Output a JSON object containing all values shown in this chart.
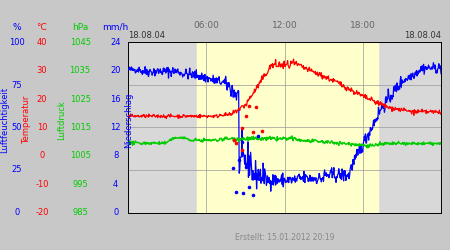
{
  "title_left": "18.08.04",
  "title_right": "18.08.04",
  "time_labels": [
    "06:00",
    "12:00",
    "18:00"
  ],
  "created_text": "Erstellt: 15.01.2012 20:19",
  "blue_ticks": [
    0,
    25,
    50,
    75,
    100
  ],
  "red_ticks": [
    -20,
    -10,
    0,
    10,
    20,
    30,
    40
  ],
  "green_ticks": [
    985,
    995,
    1005,
    1015,
    1025,
    1035,
    1045
  ],
  "purple_ticks": [
    0,
    4,
    8,
    12,
    16,
    20,
    24
  ],
  "label_blue": "%",
  "label_red": "°C",
  "label_green": "hPa",
  "label_purple": "mm/h",
  "rotlabel_blue": "Luftfeuchtigkeit",
  "rotlabel_red": "Temperatur",
  "rotlabel_green": "Luftdruck",
  "rotlabel_purple": "Niederschlag",
  "grid_color": "#999999",
  "bg_gray": "#d8d8d8",
  "bg_yellow": "#ffffcc",
  "border_color": "#000000",
  "fig_bg": "#c8c8c8",
  "blue_color": "#0000ff",
  "red_color": "#ff0000",
  "green_color": "#00cc00",
  "yellow_start_h": 5.3,
  "yellow_end_h": 19.2,
  "xlim": [
    0,
    24
  ],
  "ylim_blue": [
    0,
    100
  ],
  "blue_min": 0,
  "blue_max": 100,
  "red_min": -20,
  "red_max": 40,
  "green_min": 985,
  "green_max": 1045,
  "purple_min": 0,
  "purple_max": 24
}
